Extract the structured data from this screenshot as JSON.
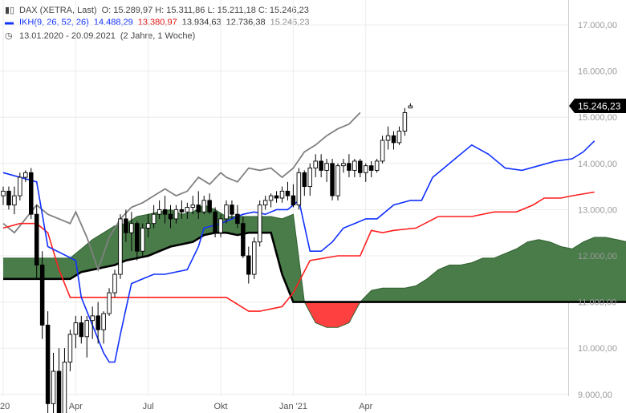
{
  "header": {
    "symbol": "DAX (XETRA, Last)",
    "ohlc": "O: 15.289,97   H: 15.311,86   L: 15.211,18   C: 15.246,23",
    "ikh_label": "IKH(9, 26, 52, 26)",
    "ikh_v1": "14.488,29",
    "ikh_v2": "13.380,97",
    "ikh_v3": "13.934,63",
    "ikh_v4": "12.736,38",
    "ikh_v5": "15.246,23",
    "period": "13.01.2020 - 20.09.2021",
    "period_note": "(2 Jahre, 1 Woche)"
  },
  "chart_data": {
    "type": "candlestick",
    "y_ticks": [
      "17.000,00",
      "16.000,00",
      "15.000,00",
      "14.000,00",
      "13.000,00",
      "12.000,00",
      "11.000,00",
      "10.000,00",
      "9.000,00"
    ],
    "y_tick_values": [
      17000,
      16000,
      15000,
      14000,
      13000,
      12000,
      11000,
      10000,
      9000
    ],
    "x_ticks": [
      "20",
      "Apr",
      "Jul",
      "Okt",
      "Jan '21",
      "Apr"
    ],
    "x_tick_weeks": [
      0,
      13,
      26,
      39,
      52,
      65
    ],
    "last_price_label": "15.246,23",
    "last_price": 15246,
    "colors": {
      "up": "#ffffff",
      "down": "#000000",
      "tenkan": "#1030ff",
      "kijun": "#ff1f1f",
      "chikou": "#808080",
      "kumo_bull": "#4a7c4a",
      "kumo_bear": "#ff4040",
      "span_b": "#000000"
    },
    "candles": [
      [
        0,
        13300,
        13500,
        13100,
        13400
      ],
      [
        1,
        13400,
        13500,
        13000,
        13100
      ],
      [
        2,
        13100,
        13500,
        12900,
        13300
      ],
      [
        3,
        13300,
        13800,
        13200,
        13700
      ],
      [
        4,
        13700,
        13850,
        13600,
        13800
      ],
      [
        5,
        13800,
        13900,
        12800,
        12900
      ],
      [
        6,
        12900,
        13100,
        11500,
        11800
      ],
      [
        7,
        11800,
        12100,
        10200,
        10500
      ],
      [
        8,
        10500,
        10800,
        8400,
        8800
      ],
      [
        9,
        8800,
        9900,
        8300,
        9500
      ],
      [
        10,
        9500,
        10000,
        8200,
        8500
      ],
      [
        11,
        8500,
        10000,
        8300,
        9700
      ],
      [
        12,
        9700,
        10400,
        9500,
        10300
      ],
      [
        13,
        10300,
        10700,
        10000,
        10550
      ],
      [
        14,
        10550,
        10700,
        10100,
        10250
      ],
      [
        15,
        10250,
        10700,
        9800,
        10600
      ],
      [
        16,
        10600,
        10900,
        10200,
        10700
      ],
      [
        17,
        10700,
        11000,
        10100,
        10400
      ],
      [
        18,
        10400,
        10800,
        10100,
        10750
      ],
      [
        19,
        10750,
        11300,
        10700,
        11200
      ],
      [
        20,
        11200,
        11700,
        11100,
        11600
      ],
      [
        21,
        11600,
        12900,
        11500,
        12800
      ],
      [
        22,
        12800,
        13000,
        12300,
        12500
      ],
      [
        23,
        12500,
        12950,
        12100,
        12700
      ],
      [
        24,
        12700,
        12750,
        11900,
        12100
      ],
      [
        25,
        12100,
        12700,
        12000,
        12600
      ],
      [
        26,
        12600,
        12900,
        12400,
        12700
      ],
      [
        27,
        12700,
        13100,
        12600,
        12900
      ],
      [
        28,
        12900,
        13200,
        12800,
        13000
      ],
      [
        29,
        13000,
        13300,
        12700,
        12900
      ],
      [
        30,
        12900,
        13100,
        12600,
        12800
      ],
      [
        31,
        12800,
        13100,
        12700,
        13000
      ],
      [
        32,
        13000,
        13200,
        12800,
        12950
      ],
      [
        33,
        12950,
        13150,
        12800,
        13050
      ],
      [
        34,
        13050,
        13300,
        12900,
        13100
      ],
      [
        35,
        13100,
        13400,
        12800,
        12950
      ],
      [
        36,
        12950,
        13300,
        12900,
        13200
      ],
      [
        37,
        13200,
        13350,
        12900,
        12950
      ],
      [
        38,
        12950,
        13050,
        12400,
        12500
      ],
      [
        39,
        12500,
        12900,
        12400,
        12800
      ],
      [
        40,
        12800,
        13200,
        12700,
        13100
      ],
      [
        41,
        13100,
        13200,
        12800,
        12900
      ],
      [
        42,
        12900,
        13100,
        12600,
        12700
      ],
      [
        43,
        12700,
        12850,
        11950,
        12000
      ],
      [
        44,
        12000,
        12200,
        11400,
        11600
      ],
      [
        45,
        11600,
        12400,
        11500,
        12300
      ],
      [
        46,
        12300,
        13200,
        12200,
        13100
      ],
      [
        47,
        13100,
        13300,
        13000,
        13200
      ],
      [
        48,
        13200,
        13350,
        13050,
        13300
      ],
      [
        49,
        13300,
        13400,
        13150,
        13250
      ],
      [
        50,
        13250,
        13500,
        13150,
        13400
      ],
      [
        51,
        13400,
        13600,
        13200,
        13300
      ],
      [
        52,
        13300,
        13550,
        13050,
        13100
      ],
      [
        53,
        13100,
        13900,
        13000,
        13800
      ],
      [
        54,
        13800,
        13850,
        13300,
        13500
      ],
      [
        55,
        13500,
        14000,
        13300,
        13900
      ],
      [
        56,
        13900,
        14200,
        13700,
        14050
      ],
      [
        57,
        14050,
        14200,
        13700,
        13850
      ],
      [
        58,
        13850,
        14100,
        13600,
        14000
      ],
      [
        59,
        14000,
        14100,
        13200,
        13300
      ],
      [
        60,
        13300,
        14000,
        13200,
        13950
      ],
      [
        61,
        13950,
        14100,
        13800,
        14000
      ],
      [
        62,
        14000,
        14200,
        13700,
        13850
      ],
      [
        63,
        13850,
        14100,
        13700,
        14050
      ],
      [
        64,
        14050,
        14100,
        13700,
        13800
      ],
      [
        65,
        13800,
        14000,
        13600,
        13950
      ],
      [
        66,
        13950,
        14050,
        13700,
        13850
      ],
      [
        67,
        13850,
        14100,
        13800,
        14050
      ],
      [
        68,
        14050,
        14600,
        14000,
        14500
      ],
      [
        69,
        14500,
        14800,
        14300,
        14600
      ],
      [
        70,
        14600,
        14700,
        14300,
        14450
      ],
      [
        71,
        14450,
        14800,
        14400,
        14700
      ],
      [
        72,
        14700,
        15200,
        14600,
        15100
      ],
      [
        73,
        15200,
        15300,
        15200,
        15246
      ]
    ],
    "tenkan": [
      [
        0,
        13800
      ],
      [
        6,
        13600
      ],
      [
        8,
        12200
      ],
      [
        13,
        11900
      ],
      [
        14,
        11100
      ],
      [
        16,
        10500
      ],
      [
        18,
        9900
      ],
      [
        19,
        9700
      ],
      [
        20,
        9700
      ],
      [
        21,
        10300
      ],
      [
        23,
        11400
      ],
      [
        25,
        11500
      ],
      [
        27,
        11600
      ],
      [
        29,
        11600
      ],
      [
        33,
        11700
      ],
      [
        35,
        12200
      ],
      [
        36,
        12600
      ],
      [
        39,
        12700
      ],
      [
        41,
        12800
      ],
      [
        43,
        12900
      ],
      [
        45,
        12950
      ],
      [
        47,
        12900
      ],
      [
        49,
        13000
      ],
      [
        51,
        13000
      ],
      [
        53,
        13200
      ],
      [
        55,
        12100
      ],
      [
        57,
        12100
      ],
      [
        59,
        12300
      ],
      [
        61,
        12600
      ],
      [
        63,
        12700
      ],
      [
        65,
        12800
      ],
      [
        67,
        12800
      ],
      [
        70,
        13100
      ],
      [
        73,
        13200
      ],
      [
        75,
        13200
      ],
      [
        77,
        13700
      ],
      [
        79,
        13900
      ],
      [
        81,
        14100
      ],
      [
        84,
        14400
      ],
      [
        87,
        14200
      ],
      [
        90,
        13900
      ],
      [
        93,
        13850
      ],
      [
        96,
        13950
      ],
      [
        99,
        14050
      ],
      [
        102,
        14100
      ],
      [
        104,
        14250
      ],
      [
        106,
        14488
      ]
    ],
    "kijun": [
      [
        0,
        12600
      ],
      [
        3,
        12700
      ],
      [
        6,
        12700
      ],
      [
        8,
        12500
      ],
      [
        10,
        11700
      ],
      [
        12,
        11100
      ],
      [
        16,
        11100
      ],
      [
        20,
        11100
      ],
      [
        24,
        11100
      ],
      [
        30,
        11100
      ],
      [
        36,
        11100
      ],
      [
        40,
        11100
      ],
      [
        44,
        10800
      ],
      [
        46,
        10800
      ],
      [
        48,
        10850
      ],
      [
        50,
        10900
      ],
      [
        52,
        11200
      ],
      [
        55,
        11900
      ],
      [
        60,
        12000
      ],
      [
        64,
        12000
      ],
      [
        66,
        12550
      ],
      [
        68,
        12500
      ],
      [
        70,
        12550
      ],
      [
        74,
        12600
      ],
      [
        78,
        12850
      ],
      [
        80,
        12850
      ],
      [
        84,
        12850
      ],
      [
        88,
        12950
      ],
      [
        92,
        12950
      ],
      [
        95,
        13100
      ],
      [
        97,
        13250
      ],
      [
        100,
        13250
      ],
      [
        102,
        13300
      ],
      [
        106,
        13381
      ]
    ],
    "chikou": [
      [
        0,
        12700
      ],
      [
        2,
        12500
      ],
      [
        4,
        12800
      ],
      [
        6,
        13100
      ],
      [
        8,
        12900
      ],
      [
        10,
        12800
      ],
      [
        12,
        12700
      ],
      [
        13,
        12950
      ],
      [
        15,
        12400
      ],
      [
        17,
        11700
      ],
      [
        19,
        12400
      ],
      [
        21,
        12800
      ],
      [
        23,
        13050
      ],
      [
        25,
        13150
      ],
      [
        27,
        13300
      ],
      [
        29,
        13450
      ],
      [
        31,
        13300
      ],
      [
        33,
        13400
      ],
      [
        35,
        13700
      ],
      [
        37,
        13550
      ],
      [
        39,
        13800
      ],
      [
        40,
        13700
      ],
      [
        42,
        13600
      ],
      [
        44,
        13900
      ],
      [
        46,
        13850
      ],
      [
        48,
        13900
      ],
      [
        50,
        13700
      ],
      [
        52,
        13900
      ],
      [
        54,
        14250
      ],
      [
        56,
        14400
      ],
      [
        58,
        14600
      ],
      [
        60,
        14750
      ],
      [
        62,
        14850
      ],
      [
        64,
        15100
      ]
    ],
    "span_a": [
      [
        0,
        11950
      ],
      [
        8,
        11950
      ],
      [
        12,
        11950
      ],
      [
        14,
        12150
      ],
      [
        16,
        12350
      ],
      [
        18,
        12500
      ],
      [
        20,
        12650
      ],
      [
        22,
        12700
      ],
      [
        24,
        12850
      ],
      [
        26,
        12900
      ],
      [
        28,
        12950
      ],
      [
        30,
        13000
      ],
      [
        32,
        12900
      ],
      [
        34,
        12950
      ],
      [
        36,
        13100
      ],
      [
        38,
        13000
      ],
      [
        40,
        12850
      ],
      [
        42,
        12850
      ],
      [
        44,
        12850
      ],
      [
        46,
        12850
      ],
      [
        48,
        12850
      ],
      [
        50,
        12800
      ],
      [
        52,
        12900
      ],
      [
        54,
        11000
      ],
      [
        56,
        10550
      ],
      [
        58,
        10450
      ],
      [
        60,
        10450
      ],
      [
        62,
        10550
      ],
      [
        64,
        11000
      ],
      [
        66,
        11250
      ],
      [
        68,
        11300
      ],
      [
        70,
        11300
      ],
      [
        72,
        11300
      ],
      [
        74,
        11350
      ],
      [
        76,
        11500
      ],
      [
        78,
        11700
      ],
      [
        80,
        11800
      ],
      [
        82,
        11800
      ],
      [
        84,
        11850
      ],
      [
        86,
        11950
      ],
      [
        88,
        11950
      ],
      [
        90,
        12050
      ],
      [
        92,
        12150
      ],
      [
        94,
        12300
      ],
      [
        96,
        12350
      ],
      [
        98,
        12300
      ],
      [
        100,
        12200
      ],
      [
        102,
        12150
      ],
      [
        104,
        12300
      ],
      [
        106,
        12400
      ],
      [
        108,
        12400
      ],
      [
        110,
        12350
      ],
      [
        112,
        12300
      ],
      [
        114,
        12400
      ],
      [
        116,
        12550
      ],
      [
        118,
        12700
      ],
      [
        120,
        12750
      ],
      [
        122,
        12750
      ],
      [
        124,
        12850
      ],
      [
        126,
        12950
      ],
      [
        128,
        13200
      ],
      [
        130,
        13300
      ],
      [
        132,
        13300
      ],
      [
        134,
        13300
      ],
      [
        136,
        13300
      ],
      [
        138,
        13400
      ],
      [
        140,
        13500
      ],
      [
        142,
        13700
      ],
      [
        144,
        13800
      ],
      [
        146,
        13850
      ]
    ],
    "span_b": [
      [
        0,
        11500
      ],
      [
        8,
        11500
      ],
      [
        12,
        11500
      ],
      [
        14,
        11650
      ],
      [
        16,
        11700
      ],
      [
        18,
        11750
      ],
      [
        20,
        11800
      ],
      [
        22,
        11900
      ],
      [
        24,
        11950
      ],
      [
        26,
        12000
      ],
      [
        28,
        12100
      ],
      [
        30,
        12200
      ],
      [
        32,
        12250
      ],
      [
        34,
        12300
      ],
      [
        36,
        12450
      ],
      [
        38,
        12500
      ],
      [
        40,
        12500
      ],
      [
        42,
        12450
      ],
      [
        44,
        12500
      ],
      [
        46,
        12500
      ],
      [
        48,
        12500
      ],
      [
        50,
        11600
      ],
      [
        52,
        11000
      ],
      [
        54,
        11000
      ],
      [
        60,
        11000
      ],
      [
        70,
        11000
      ],
      [
        80,
        11000
      ],
      [
        90,
        11000
      ],
      [
        100,
        11000
      ],
      [
        110,
        11000
      ],
      [
        118,
        11000
      ],
      [
        120,
        11050
      ],
      [
        122,
        11150
      ],
      [
        124,
        11200
      ],
      [
        126,
        11200
      ],
      [
        130,
        11200
      ],
      [
        134,
        11200
      ],
      [
        137,
        11200
      ],
      [
        140,
        11300
      ],
      [
        142,
        11600
      ],
      [
        144,
        12000
      ],
      [
        146,
        12500
      ]
    ]
  }
}
